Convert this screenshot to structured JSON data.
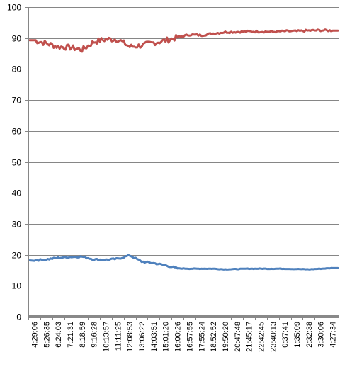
{
  "chart_data": {
    "type": "line",
    "title": "",
    "xlabel": "",
    "ylabel": "",
    "ylim": [
      0,
      100
    ],
    "y_ticks": [
      0,
      10,
      20,
      30,
      40,
      50,
      60,
      70,
      80,
      90,
      100
    ],
    "grid": true,
    "legend": "none",
    "categories": [
      "4:29:06",
      "5:26:35",
      "6:24:03",
      "7:21:31",
      "8:18:59",
      "9:16:28",
      "10:13:57",
      "11:11:25",
      "12:08:53",
      "13:06:22",
      "14:03:51",
      "15:01:20",
      "16:00:26",
      "16:57:55",
      "17:55:24",
      "18:52:52",
      "19:50:20",
      "20:47:48",
      "21:45:17",
      "22:42:45",
      "23:40:13",
      "0:37:41",
      "1:35:09",
      "2:32:38",
      "3:30:06",
      "4:27:34"
    ],
    "series": [
      {
        "color": "#c0504d",
        "values": [
          89.3,
          88.3,
          87.2,
          87.0,
          86.2,
          88.8,
          89.6,
          89.6,
          87.2,
          87.6,
          88.5,
          89.2,
          90.2,
          91.1,
          90.9,
          91.5,
          91.9,
          92.0,
          92.1,
          92.1,
          92.0,
          92.2,
          92.2,
          92.4,
          92.5,
          92.4
        ]
      },
      {
        "color": "#4f81bd",
        "values": [
          18.2,
          18.5,
          19.0,
          19.3,
          19.4,
          18.5,
          18.4,
          18.7,
          19.8,
          17.8,
          17.3,
          16.6,
          15.6,
          15.5,
          15.5,
          15.5,
          15.3,
          15.4,
          15.5,
          15.5,
          15.5,
          15.5,
          15.4,
          15.3,
          15.5,
          15.7
        ]
      }
    ]
  }
}
